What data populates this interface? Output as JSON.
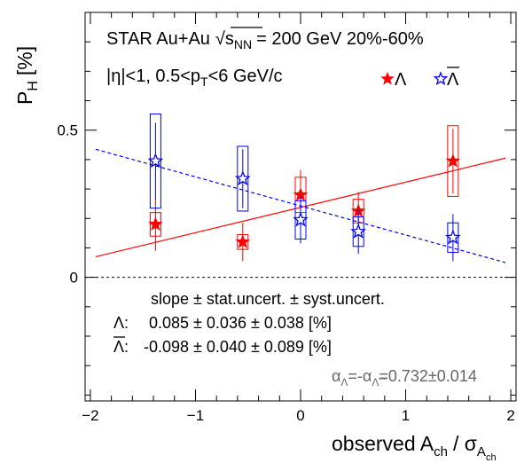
{
  "chart_data": {
    "type": "scatter",
    "x_axis": {
      "label_main": "observed A",
      "label_sub": "ch",
      "label_sep": "/ σ",
      "label_sub2": "A",
      "label_subsub": "ch",
      "range": [
        -2.05,
        2.05
      ],
      "ticks": [
        -2,
        -1,
        0,
        1,
        2
      ],
      "tick_labels": [
        "−2",
        "−1",
        "0",
        "1",
        "2"
      ]
    },
    "y_axis": {
      "label_main": "P",
      "label_sub": "H",
      "label_unit": "[%]",
      "range": [
        -0.42,
        0.9
      ],
      "ticks": [
        0,
        0.5
      ],
      "tick_labels": [
        "0",
        "0.5"
      ]
    },
    "header": {
      "line1_pre": "STAR Au+Au",
      "line1_sqrt": "s",
      "line1_sqrt_sub": "NN",
      "line1_post": "= 200 GeV  20%-60%",
      "line2_pre": "|η|<1, 0.5<p",
      "line2_sub": "T",
      "line2_post": "<6 GeV/c"
    },
    "legend": {
      "position": "top-right",
      "lambda_label": "Λ",
      "antilambda_label": "Λ"
    },
    "series": [
      {
        "name": "Λ",
        "color": "#ff0000",
        "marker": "filled-star",
        "points": [
          {
            "x": -1.38,
            "y": 0.18,
            "stat": 0.09,
            "syst": 0.04
          },
          {
            "x": -0.55,
            "y": 0.12,
            "stat": 0.065,
            "syst": 0.025
          },
          {
            "x": 0.0,
            "y": 0.28,
            "stat": 0.085,
            "syst": 0.06
          },
          {
            "x": 0.55,
            "y": 0.225,
            "stat": 0.065,
            "syst": 0.04
          },
          {
            "x": 1.45,
            "y": 0.395,
            "stat": 0.11,
            "syst": 0.12
          }
        ],
        "fit": {
          "x1": -1.95,
          "y1": 0.07,
          "x2": 1.95,
          "y2": 0.405,
          "style": "solid"
        }
      },
      {
        "name": "Λ",
        "color": "#0000ff",
        "marker": "open-star",
        "points": [
          {
            "x": -1.38,
            "y": 0.395,
            "stat": 0.13,
            "syst": 0.16
          },
          {
            "x": -0.55,
            "y": 0.335,
            "stat": 0.1,
            "syst": 0.11
          },
          {
            "x": 0.0,
            "y": 0.195,
            "stat": 0.08,
            "syst": 0.065
          },
          {
            "x": 0.55,
            "y": 0.155,
            "stat": 0.075,
            "syst": 0.05
          },
          {
            "x": 1.45,
            "y": 0.135,
            "stat": 0.08,
            "syst": 0.05
          }
        ],
        "fit": {
          "x1": -1.95,
          "y1": 0.435,
          "x2": 1.95,
          "y2": 0.05,
          "style": "dashed"
        }
      }
    ],
    "reference_line": {
      "y": 0,
      "style": "dashed"
    },
    "annotations": {
      "slope_header": "slope ± stat.uncert. ± syst.uncert.",
      "lambda_row_label": "Λ:",
      "lambda_row_value": "0.085 ± 0.036 ± 0.038 [%]",
      "antilambda_row_label": "Λ:",
      "antilambda_row_value": "-0.098 ± 0.040 ± 0.089 [%]",
      "alpha_text": "α",
      "alpha_sub1": "Λ",
      "alpha_mid": "=-α",
      "alpha_sub2": "Λ",
      "alpha_value": "=0.732±0.014"
    }
  }
}
